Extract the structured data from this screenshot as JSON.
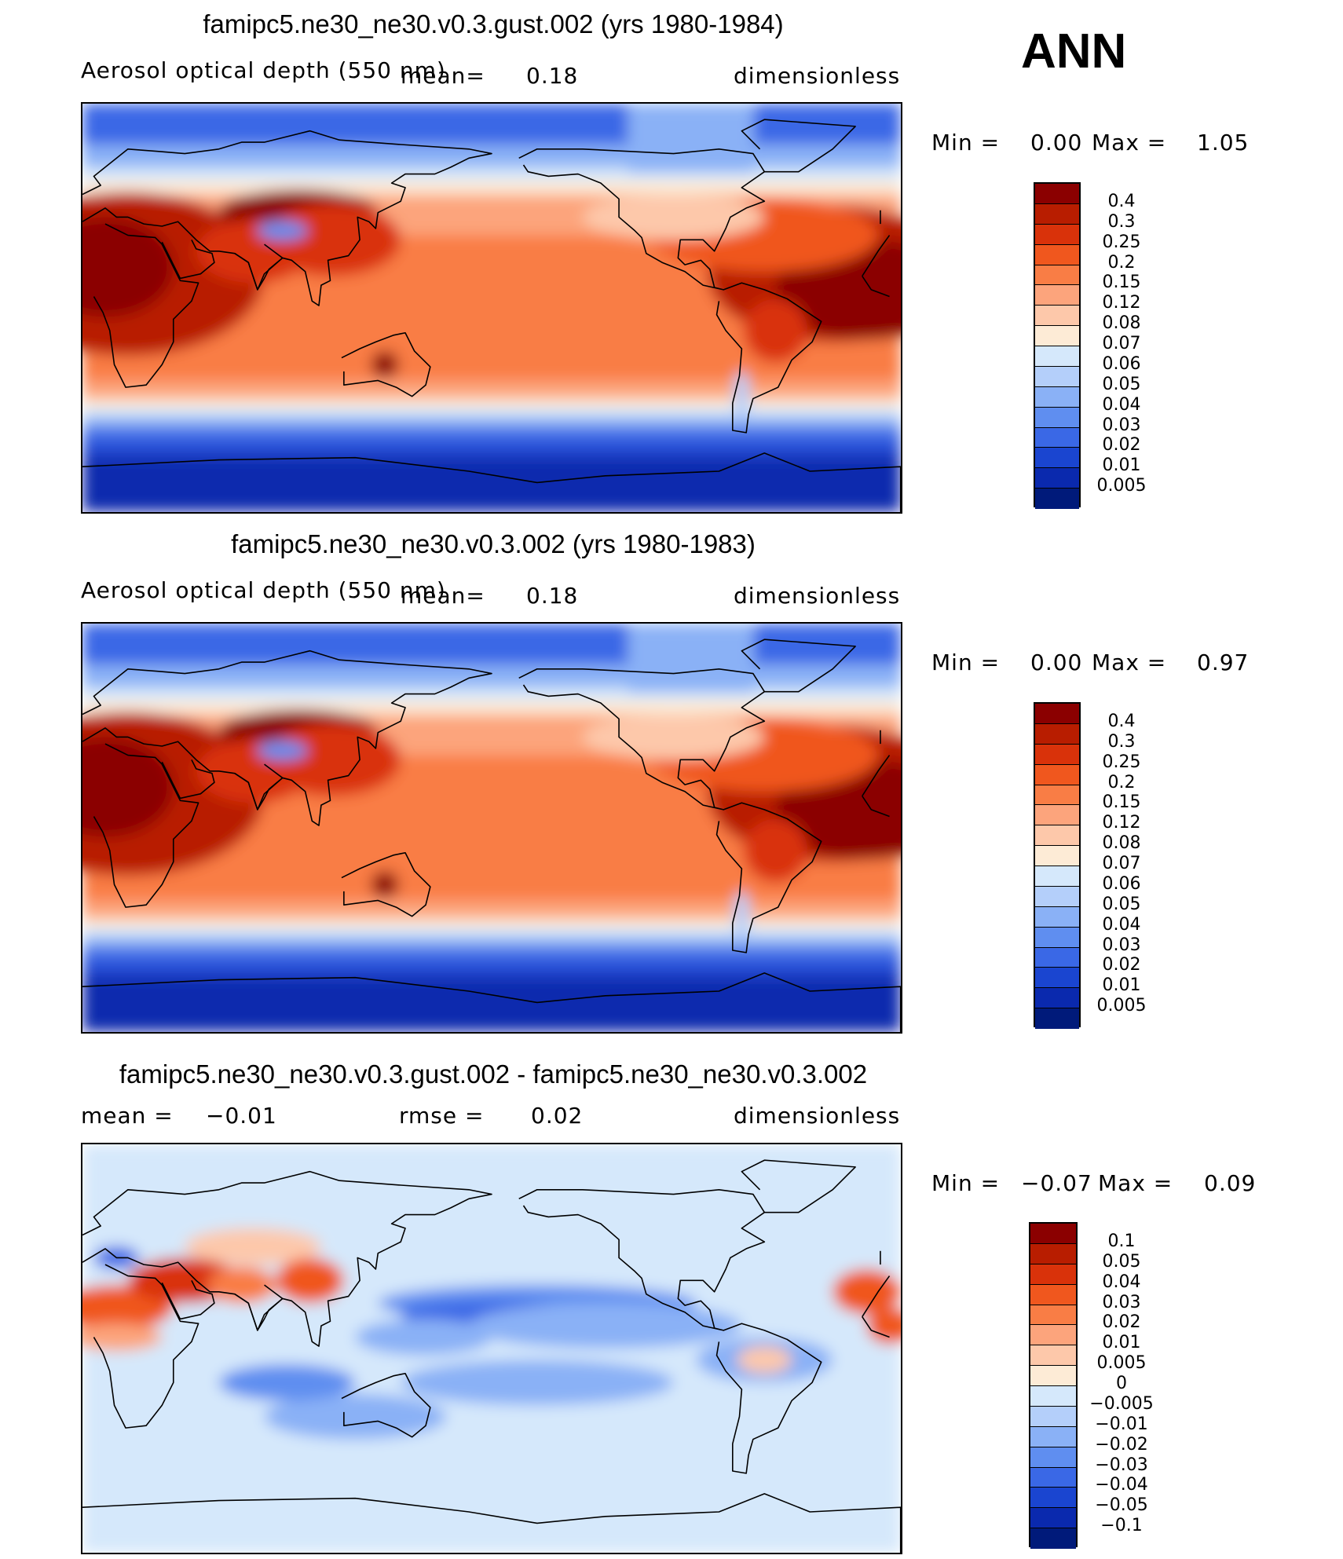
{
  "season": "ANN",
  "chart_data": [
    {
      "type": "heatmap",
      "title": "famipc5.ne30_ne30.v0.3.gust.002 (yrs 1980-1984)",
      "variable": "Aerosol optical depth (550 nm)",
      "mean_label": "mean=",
      "mean_value": "0.18",
      "units": "dimensionless",
      "min_label": "Min =",
      "min_value": "0.00",
      "max_label": "Max =",
      "max_value": "1.05",
      "levels": [
        "0.4",
        "0.3",
        "0.25",
        "0.2",
        "0.15",
        "0.12",
        "0.08",
        "0.07",
        "0.06",
        "0.05",
        "0.04",
        "0.03",
        "0.02",
        "0.01",
        "0.005"
      ],
      "colors": [
        "#8b0000",
        "#b81d00",
        "#d9320a",
        "#f0571e",
        "#f97d45",
        "#fca47c",
        "#fdc8aa",
        "#fdebd6",
        "#d5e8fb",
        "#b4cffa",
        "#8ab1f6",
        "#5f8ef0",
        "#3a68e6",
        "#1a45d0",
        "#0a29ae",
        "#001a7a"
      ]
    },
    {
      "type": "heatmap",
      "title": "famipc5.ne30_ne30.v0.3.002 (yrs 1980-1983)",
      "variable": "Aerosol optical depth (550 nm)",
      "mean_label": "mean=",
      "mean_value": "0.18",
      "units": "dimensionless",
      "min_label": "Min =",
      "min_value": "0.00",
      "max_label": "Max =",
      "max_value": "0.97",
      "levels": [
        "0.4",
        "0.3",
        "0.25",
        "0.2",
        "0.15",
        "0.12",
        "0.08",
        "0.07",
        "0.06",
        "0.05",
        "0.04",
        "0.03",
        "0.02",
        "0.01",
        "0.005"
      ],
      "colors": [
        "#8b0000",
        "#b81d00",
        "#d9320a",
        "#f0571e",
        "#f97d45",
        "#fca47c",
        "#fdc8aa",
        "#fdebd6",
        "#d5e8fb",
        "#b4cffa",
        "#8ab1f6",
        "#5f8ef0",
        "#3a68e6",
        "#1a45d0",
        "#0a29ae",
        "#001a7a"
      ]
    },
    {
      "type": "heatmap",
      "title": "famipc5.ne30_ne30.v0.3.gust.002 - famipc5.ne30_ne30.v0.3.002",
      "mean_label": "mean =",
      "mean_value": "−0.01",
      "rmse_label": "rmse =",
      "rmse_value": "0.02",
      "units": "dimensionless",
      "min_label": "Min =",
      "min_value": "−0.07",
      "max_label": "Max =",
      "max_value": "0.09",
      "levels": [
        "0.1",
        "0.05",
        "0.04",
        "0.03",
        "0.02",
        "0.01",
        "0.005",
        "0",
        "−0.005",
        "−0.01",
        "−0.02",
        "−0.03",
        "−0.04",
        "−0.05",
        "−0.1"
      ],
      "colors": [
        "#8b0000",
        "#b81d00",
        "#d9320a",
        "#f0571e",
        "#f97d45",
        "#fca47c",
        "#fdc8aa",
        "#fdebd6",
        "#d5e8fb",
        "#b4cffa",
        "#8ab1f6",
        "#5f8ef0",
        "#3a68e6",
        "#1a45d0",
        "#0a29ae",
        "#001a7a"
      ]
    }
  ]
}
